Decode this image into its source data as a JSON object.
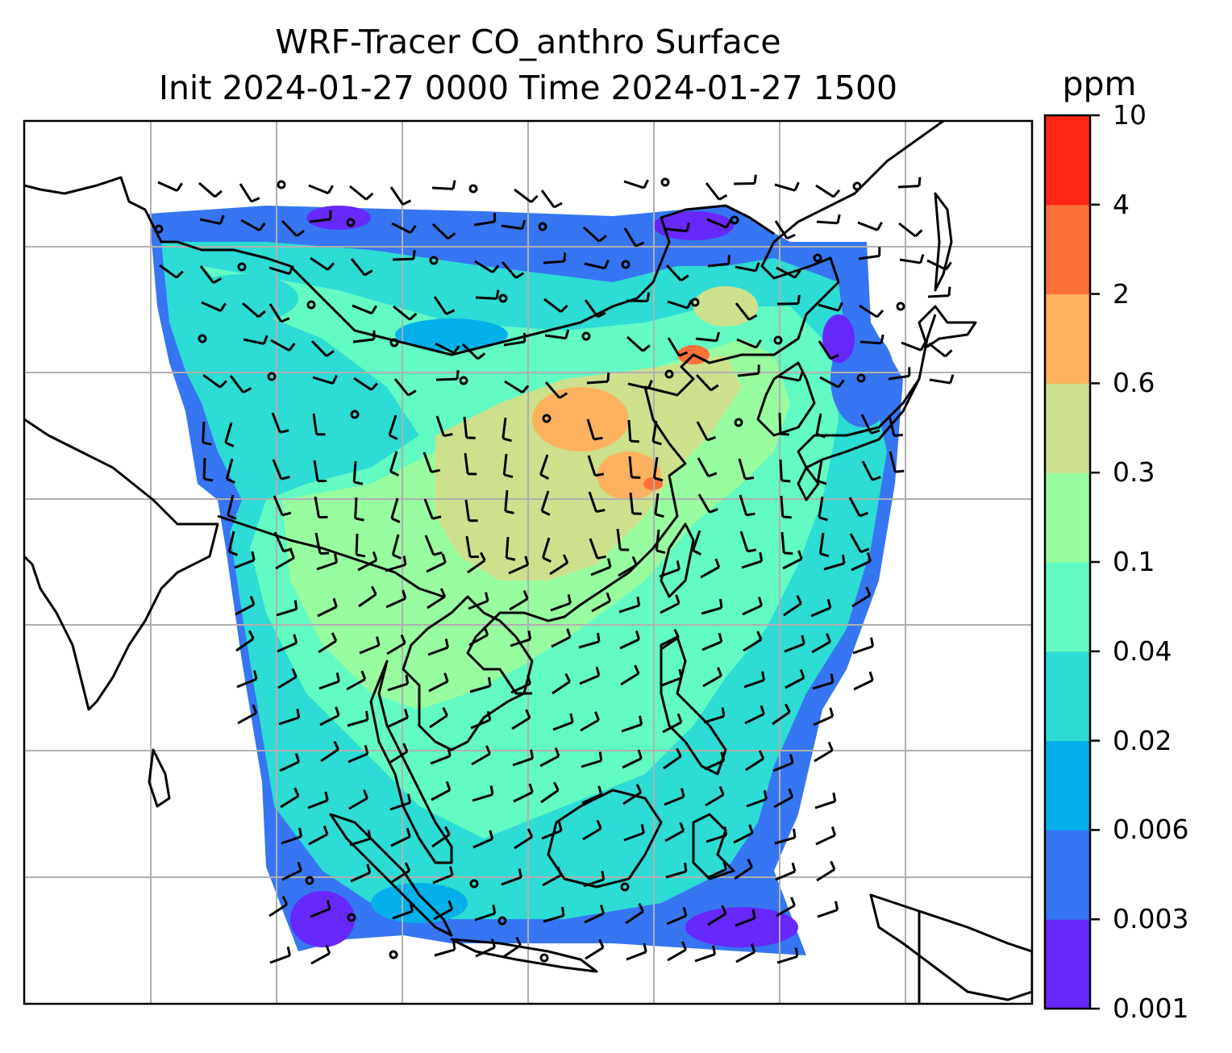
{
  "title": {
    "line1": "WRF-Tracer CO_anthro Surface",
    "line2": "Init 2024-01-27 0000 Time 2024-01-27 1500"
  },
  "colorbar": {
    "unit": "ppm",
    "levels": [
      "0.001",
      "0.003",
      "0.006",
      "0.02",
      "0.04",
      "0.1",
      "0.3",
      "0.6",
      "2",
      "4",
      "10"
    ],
    "colors": [
      "#6628fb",
      "#3676f2",
      "#03b0ea",
      "#2ddcd4",
      "#62fbc3",
      "#98fd9f",
      "#cde18c",
      "#feb25f",
      "#ff6f3a",
      "#ff2515"
    ]
  },
  "map": {
    "background": "#ffffff",
    "gridlines": true,
    "grid_color": "#b0b0b0",
    "coastline_color": "#000000",
    "wind_barbs": true
  }
}
